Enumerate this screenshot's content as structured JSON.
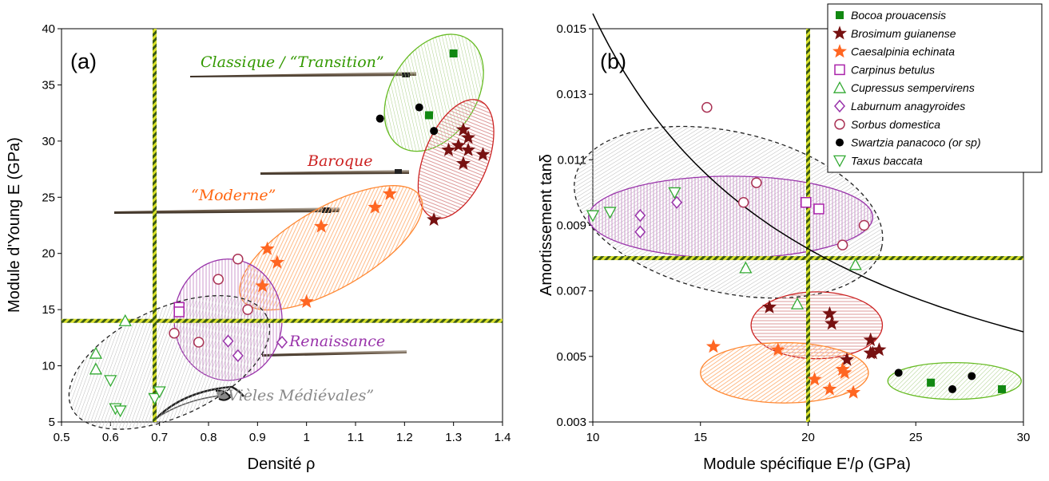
{
  "chart_data": [
    {
      "panel": "(a)",
      "type": "scatter",
      "xlabel": "Densité ρ",
      "ylabel": "Module d'Young E (GPa)",
      "xlim": [
        0.5,
        1.4
      ],
      "ylim": [
        5,
        40
      ],
      "xticks": [
        "0.5",
        "0.6",
        "0.7",
        "0.8",
        "0.9",
        "1",
        "1.1",
        "1.2",
        "1.3",
        "1.4"
      ],
      "yticks": [
        "5",
        "10",
        "15",
        "20",
        "25",
        "30",
        "35",
        "40"
      ],
      "threshold_x": 0.69,
      "threshold_y": 14.0,
      "groups": [
        {
          "label": "Classique / “Transition”",
          "color": "#66bb22",
          "text_color": "#339900",
          "ellipse": {
            "cx": 1.26,
            "cy": 34.3,
            "rx": 0.13,
            "ry": 3.8,
            "angle": -58
          }
        },
        {
          "label": "Baroque",
          "color": "#cc2222",
          "text_color": "#cc2222",
          "ellipse": {
            "cx": 1.305,
            "cy": 28.4,
            "rx": 0.065,
            "ry": 5.6,
            "angle": 22
          }
        },
        {
          "label": "“Moderne”",
          "color": "#ff8833",
          "text_color": "#ff6611",
          "ellipse": {
            "cx": 1.05,
            "cy": 20.5,
            "rx": 0.21,
            "ry": 3.6,
            "angle": -30
          }
        },
        {
          "label": "Renaissance",
          "color": "#9933aa",
          "text_color": "#9933aa",
          "ellipse": {
            "cx": 0.84,
            "cy": 14.1,
            "rx": 0.11,
            "ry": 5.4,
            "angle": 0
          }
        },
        {
          "label": "“Vièles Médiévales”",
          "color": "#222222",
          "text_color": "#888888",
          "ellipse": {
            "cx": 0.72,
            "cy": 10.3,
            "rx": 0.22,
            "ry": 4.8,
            "angle": -25
          }
        }
      ],
      "series": [
        {
          "name": "Bocoa prouacensis",
          "x": [
            1.3,
            1.25
          ],
          "y": [
            37.8,
            32.3
          ]
        },
        {
          "name": "Brosimum guianense",
          "x": [
            1.32,
            1.33,
            1.29,
            1.31,
            1.33,
            1.32,
            1.36,
            1.26
          ],
          "y": [
            31.0,
            30.3,
            29.2,
            29.6,
            29.2,
            28.0,
            28.8,
            23.0
          ]
        },
        {
          "name": "Caesalpinia echinata",
          "x": [
            1.17,
            1.14,
            1.03,
            0.92,
            0.94,
            0.91,
            1.0
          ],
          "y": [
            25.3,
            24.1,
            22.4,
            20.4,
            19.2,
            17.1,
            15.7
          ]
        },
        {
          "name": "Carpinus betulus",
          "x": [
            0.74,
            0.74
          ],
          "y": [
            15.2,
            14.8
          ]
        },
        {
          "name": "Cupressus sempervirens",
          "x": [
            0.63,
            0.57,
            0.57
          ],
          "y": [
            14.0,
            11.1,
            9.7
          ]
        },
        {
          "name": "Laburnum anagyroides",
          "x": [
            0.84,
            0.86,
            0.95
          ],
          "y": [
            12.2,
            10.9,
            12.1
          ]
        },
        {
          "name": "Sorbus domestica",
          "x": [
            0.86,
            0.82,
            0.73,
            0.78,
            0.88
          ],
          "y": [
            19.5,
            17.7,
            12.9,
            12.1,
            15.0
          ]
        },
        {
          "name": "Swartzia panacoco (or sp)",
          "x": [
            1.15,
            1.23,
            1.26
          ],
          "y": [
            32.0,
            33.0,
            30.9
          ]
        },
        {
          "name": "Taxus baccata",
          "x": [
            0.6,
            0.61,
            0.62,
            0.69,
            0.7
          ],
          "y": [
            8.7,
            6.2,
            6.0,
            7.1,
            7.7
          ]
        }
      ]
    },
    {
      "panel": "(b)",
      "type": "scatter",
      "xlabel": "Module spécifique E'/ρ (GPa)",
      "ylabel": "Amortissement tanδ",
      "xlim": [
        10,
        30
      ],
      "ylim": [
        0.003,
        0.015
      ],
      "xticks": [
        "10",
        "15",
        "20",
        "25",
        "30"
      ],
      "yticks": [
        "0.003",
        "0.005",
        "0.007",
        "0.009",
        "0.011",
        "0.013",
        "0.015"
      ],
      "threshold_x": 20.0,
      "threshold_y": 0.008,
      "curve": "tanδ = 0.1228 / (E'/ρ)^0.9 (black line)",
      "ellipses": [
        {
          "color": "#222222",
          "cx": 16.3,
          "cy": 0.0094,
          "rx": 7.3,
          "ry": 0.00245,
          "angle": 13
        },
        {
          "color": "#9933aa",
          "cx": 16.4,
          "cy": 0.00925,
          "rx": 6.6,
          "ry": 0.00125,
          "angle": 0
        },
        {
          "color": "#cc2222",
          "cx": 20.4,
          "cy": 0.00595,
          "rx": 3.05,
          "ry": 0.00102,
          "angle": 0
        },
        {
          "color": "#ff8833",
          "cx": 18.9,
          "cy": 0.0045,
          "rx": 3.9,
          "ry": 0.00092,
          "angle": 0
        },
        {
          "color": "#66bb22",
          "cx": 26.8,
          "cy": 0.00425,
          "rx": 3.1,
          "ry": 0.00056,
          "angle": 0
        }
      ],
      "series": [
        {
          "name": "Bocoa prouacensis",
          "x": [
            25.7,
            29.0
          ],
          "y": [
            0.0042,
            0.004
          ]
        },
        {
          "name": "Brosimum guianense",
          "x": [
            18.2,
            21.0,
            21.1,
            22.9,
            23.3,
            22.9,
            21.8,
            23.0
          ],
          "y": [
            0.0065,
            0.0063,
            0.006,
            0.0055,
            0.0052,
            0.0051,
            0.0049,
            0.0051
          ]
        },
        {
          "name": "Caesalpinia echinata",
          "x": [
            15.6,
            18.6,
            20.3,
            21.6,
            21.7,
            21.0,
            22.1
          ],
          "y": [
            0.0053,
            0.0052,
            0.0043,
            0.0046,
            0.0045,
            0.004,
            0.0039
          ]
        },
        {
          "name": "Carpinus betulus",
          "x": [
            19.9,
            20.5
          ],
          "y": [
            0.0097,
            0.0095
          ]
        },
        {
          "name": "Cupressus sempervirens",
          "x": [
            17.1,
            19.5,
            22.2
          ],
          "y": [
            0.0077,
            0.0066,
            0.0078
          ]
        },
        {
          "name": "Laburnum anagyroides",
          "x": [
            12.2,
            12.2,
            13.9
          ],
          "y": [
            0.0093,
            0.0088,
            0.0097
          ]
        },
        {
          "name": "Sorbus domestica",
          "x": [
            15.3,
            17.6,
            17.0,
            21.6,
            22.6
          ],
          "y": [
            0.0126,
            0.0103,
            0.0097,
            0.0084,
            0.009
          ]
        },
        {
          "name": "Swartzia panacoco (or sp)",
          "x": [
            24.2,
            26.7,
            27.6
          ],
          "y": [
            0.0045,
            0.004,
            0.0044
          ]
        },
        {
          "name": "Taxus baccata",
          "x": [
            10.0,
            10.8,
            13.8
          ],
          "y": [
            0.0093,
            0.0094,
            0.01
          ]
        }
      ]
    }
  ],
  "legend": [
    {
      "name": "Bocoa prouacensis",
      "marker": "square",
      "color": "#118811"
    },
    {
      "name": "Brosimum guianense",
      "marker": "star",
      "color": "#771111"
    },
    {
      "name": "Caesalpinia echinata",
      "marker": "star",
      "color": "#ff6622"
    },
    {
      "name": "Carpinus betulus",
      "marker": "open-square",
      "color": "#aa22aa"
    },
    {
      "name": "Cupressus sempervirens",
      "marker": "open-triangle",
      "color": "#33aa33"
    },
    {
      "name": "Laburnum anagyroides",
      "marker": "open-diamond",
      "color": "#9933aa"
    },
    {
      "name": "Sorbus domestica",
      "marker": "open-circle",
      "color": "#aa3355"
    },
    {
      "name": "Swartzia panacoco (or sp)",
      "marker": "circle",
      "color": "#000000"
    },
    {
      "name": "Taxus baccata",
      "marker": "open-down-triangle",
      "color": "#33aa33"
    }
  ]
}
